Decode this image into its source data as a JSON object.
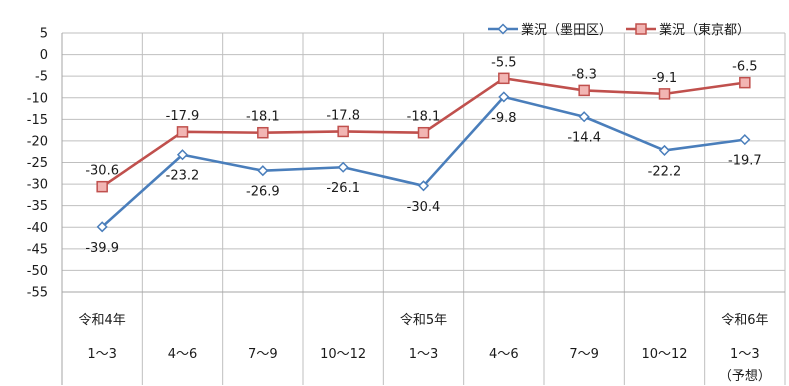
{
  "chart_data": {
    "type": "line",
    "title": "",
    "xlabel": "",
    "ylabel": "",
    "ylim": [
      -55,
      5
    ],
    "ytick_step": 5,
    "grid": true,
    "legend_position": "top-right",
    "categories": [
      {
        "year": "令和4年",
        "period": "1〜3",
        "note": ""
      },
      {
        "year": "",
        "period": "4〜6",
        "note": ""
      },
      {
        "year": "",
        "period": "7〜9",
        "note": ""
      },
      {
        "year": "",
        "period": "10〜12",
        "note": ""
      },
      {
        "year": "令和5年",
        "period": "1〜3",
        "note": ""
      },
      {
        "year": "",
        "period": "4〜6",
        "note": ""
      },
      {
        "year": "",
        "period": "7〜9",
        "note": ""
      },
      {
        "year": "",
        "period": "10〜12",
        "note": ""
      },
      {
        "year": "令和6年",
        "period": "1〜3",
        "note": "（予想）"
      }
    ],
    "series": [
      {
        "name": "業況（墨田区）",
        "color": "#4a7ebb",
        "marker": "diamond-open",
        "values": [
          -39.9,
          -23.2,
          -26.9,
          -26.1,
          -30.4,
          -9.8,
          -14.4,
          -22.2,
          -19.7
        ],
        "labels": [
          "-39.9",
          "-23.2",
          "-26.9",
          "-26.1",
          "-30.4",
          "-9.8",
          "-14.4",
          "-22.2",
          "-19.7"
        ]
      },
      {
        "name": "業況（東京都）",
        "color": "#c0504d",
        "marker": "square",
        "values": [
          -30.6,
          -17.9,
          -18.1,
          -17.8,
          -18.1,
          -5.5,
          -8.3,
          -9.1,
          -6.5
        ],
        "labels": [
          "-30.6",
          "-17.9",
          "-18.1",
          "-17.8",
          "-18.1",
          "-5.5",
          "-8.3",
          "-9.1",
          "-6.5"
        ]
      }
    ]
  }
}
